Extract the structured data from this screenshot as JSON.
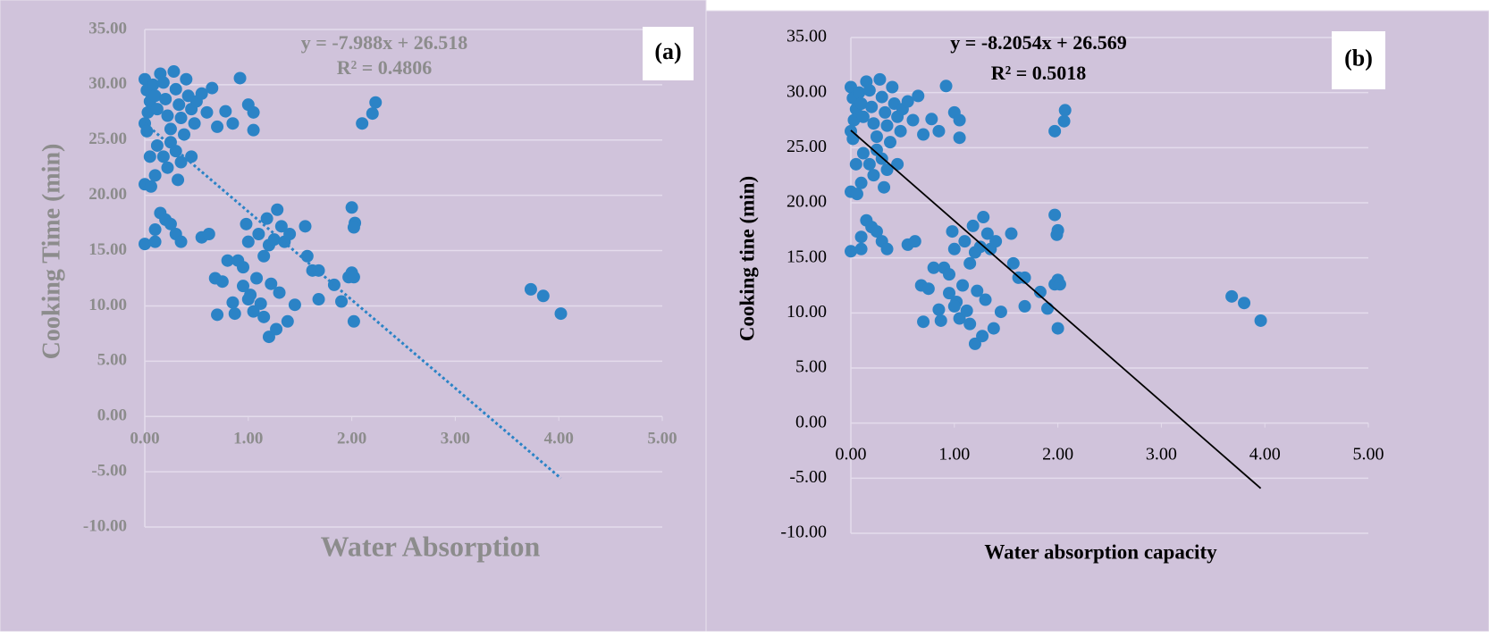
{
  "chart_data": [
    {
      "type": "scatter",
      "panel_label": "(a)",
      "equation": "y = -7.988x + 26.518",
      "r_squared": "R² = 0.4806",
      "x_label": "Water Absorption",
      "y_label": "Cooking Time (min)",
      "text_color": "#8c8c8c",
      "color": "#2b83c6",
      "trendline": {
        "slope": -7.988,
        "intercept": 26.518,
        "x_range": [
          0,
          4.02
        ],
        "style": "dotted"
      },
      "xlim": [
        0,
        5
      ],
      "ylim": [
        -10,
        35
      ],
      "grid": true,
      "xticks": [
        {
          "value": 0,
          "label": "0.00"
        },
        {
          "value": 1,
          "label": "1.00"
        },
        {
          "value": 2,
          "label": "2.00"
        },
        {
          "value": 3,
          "label": "3.00"
        },
        {
          "value": 4,
          "label": "4.00"
        },
        {
          "value": 5,
          "label": "5.00"
        }
      ],
      "yticks": [
        {
          "value": -10,
          "label": "-10.00"
        },
        {
          "value": -5,
          "label": "-5.00"
        },
        {
          "value": 0,
          "label": "0.00"
        },
        {
          "value": 5,
          "label": "5.00"
        },
        {
          "value": 10,
          "label": "10.00"
        },
        {
          "value": 15,
          "label": "15.00"
        },
        {
          "value": 20,
          "label": "20.00"
        },
        {
          "value": 25,
          "label": "25.00"
        },
        {
          "value": 30,
          "label": "30.00"
        },
        {
          "value": 35,
          "label": "35.00"
        }
      ],
      "x": [
        0,
        0.02,
        0.05,
        0.03,
        0,
        0.02,
        0.08,
        0.1,
        0.12,
        0.15,
        0.18,
        0.2,
        0.22,
        0.25,
        0.28,
        0.3,
        0.33,
        0.35,
        0.38,
        0.4,
        0.42,
        0.45,
        0.48,
        0.5,
        0.55,
        0.6,
        0.65,
        0.7,
        0.12,
        0.18,
        0.22,
        0.3,
        0.35,
        0.45,
        0.05,
        0,
        0.06,
        0.1,
        0.32,
        0.25,
        0,
        0.1,
        0.15,
        0.2,
        0.25,
        0.3,
        0.35,
        0.55,
        0.62,
        0.1,
        0.85,
        0.92,
        1.0,
        1.05,
        1.05,
        0.78,
        0.68,
        0.7,
        0.75,
        0.8,
        0.85,
        0.87,
        0.9,
        0.95,
        0.98,
        1.0,
        1.02,
        1.05,
        1.08,
        1.1,
        1.12,
        1.15,
        1.18,
        1.2,
        1.22,
        1.25,
        1.28,
        1.3,
        1.32,
        1.35,
        1.38,
        1.4,
        1.45,
        1.2,
        1.27,
        1.15,
        1.0,
        0.95,
        1.55,
        1.57,
        1.62,
        1.68,
        1.68,
        1.83,
        1.9,
        1.97,
        2.0,
        2.02,
        2.0,
        2.03,
        2.02,
        2.02,
        2.1,
        2.2,
        2.23,
        3.73,
        3.85,
        4.02
      ],
      "values": [
        30.5,
        29.5,
        28.5,
        27.5,
        26.5,
        25.8,
        30.0,
        29.0,
        27.8,
        31.0,
        30.2,
        28.7,
        27.2,
        26.0,
        31.2,
        29.6,
        28.2,
        27.0,
        25.5,
        30.5,
        29.0,
        27.8,
        26.5,
        28.5,
        29.2,
        27.5,
        29.7,
        26.2,
        24.5,
        23.5,
        22.5,
        24.0,
        23.0,
        23.5,
        23.5,
        21.0,
        20.8,
        21.8,
        21.4,
        24.8,
        15.6,
        15.8,
        18.4,
        17.8,
        17.4,
        16.5,
        15.8,
        16.2,
        16.5,
        16.9,
        26.5,
        30.6,
        28.2,
        27.5,
        25.9,
        27.6,
        12.5,
        9.2,
        12.2,
        14.1,
        10.3,
        9.3,
        14.1,
        13.5,
        17.4,
        15.8,
        11.0,
        9.5,
        12.5,
        16.5,
        10.2,
        14.5,
        17.9,
        15.5,
        12.0,
        16.0,
        18.7,
        11.2,
        17.2,
        15.8,
        8.6,
        16.5,
        10.1,
        7.2,
        7.9,
        9.0,
        10.6,
        11.8,
        17.2,
        14.5,
        13.2,
        13.2,
        10.6,
        11.9,
        10.4,
        12.6,
        13.0,
        12.6,
        18.9,
        17.5,
        17.1,
        8.6,
        26.5,
        27.4,
        28.4,
        11.5,
        10.9,
        9.3
      ]
    },
    {
      "type": "scatter",
      "panel_label": "(b)",
      "equation": "y = -8.2054x + 26.569",
      "r_squared": "R² = 0.5018",
      "x_label": "Water absorption capacity",
      "y_label": "Cooking tine (min)",
      "text_color": "#000000",
      "color": "#2b83c6",
      "trendline": {
        "slope": -8.2054,
        "intercept": 26.569,
        "x_range": [
          0,
          3.96
        ],
        "style": "solid"
      },
      "xlim": [
        0,
        5
      ],
      "ylim": [
        -10,
        35
      ],
      "grid": true,
      "xticks": [
        {
          "value": 0,
          "label": "0.00"
        },
        {
          "value": 1,
          "label": "1.00"
        },
        {
          "value": 2,
          "label": "2.00"
        },
        {
          "value": 3,
          "label": "3.00"
        },
        {
          "value": 4,
          "label": "4.00"
        },
        {
          "value": 5,
          "label": "5.00"
        }
      ],
      "yticks": [
        {
          "value": -10,
          "label": "-10.00"
        },
        {
          "value": -5,
          "label": "-5.00"
        },
        {
          "value": 0,
          "label": "0.00"
        },
        {
          "value": 5,
          "label": "5.00"
        },
        {
          "value": 10,
          "label": "10.00"
        },
        {
          "value": 15,
          "label": "15.00"
        },
        {
          "value": 20,
          "label": "20.00"
        },
        {
          "value": 25,
          "label": "25.00"
        },
        {
          "value": 30,
          "label": "30.00"
        },
        {
          "value": 35,
          "label": "35.00"
        }
      ],
      "x": [
        0,
        0.02,
        0.05,
        0.03,
        0,
        0.02,
        0.08,
        0.1,
        0.12,
        0.15,
        0.18,
        0.2,
        0.22,
        0.25,
        0.28,
        0.3,
        0.33,
        0.35,
        0.38,
        0.4,
        0.42,
        0.45,
        0.48,
        0.5,
        0.55,
        0.6,
        0.65,
        0.7,
        0.12,
        0.18,
        0.22,
        0.3,
        0.35,
        0.45,
        0.05,
        0,
        0.06,
        0.1,
        0.32,
        0.25,
        0,
        0.1,
        0.15,
        0.2,
        0.25,
        0.3,
        0.35,
        0.55,
        0.62,
        0.1,
        0.85,
        0.92,
        1.0,
        1.05,
        1.05,
        0.78,
        0.68,
        0.7,
        0.75,
        0.8,
        0.85,
        0.87,
        0.9,
        0.95,
        0.98,
        1.0,
        1.02,
        1.05,
        1.08,
        1.1,
        1.12,
        1.15,
        1.18,
        1.2,
        1.22,
        1.25,
        1.28,
        1.3,
        1.32,
        1.35,
        1.38,
        1.4,
        1.45,
        1.2,
        1.27,
        1.15,
        1.0,
        0.95,
        1.55,
        1.57,
        1.62,
        1.68,
        1.68,
        1.83,
        1.9,
        1.97,
        2.0,
        2.02,
        1.97,
        2.0,
        1.99,
        2.0,
        1.97,
        2.06,
        2.07,
        3.68,
        3.8,
        3.96
      ],
      "values": [
        30.5,
        29.5,
        28.5,
        27.5,
        26.5,
        25.8,
        30.0,
        29.0,
        27.8,
        31.0,
        30.2,
        28.7,
        27.2,
        26.0,
        31.2,
        29.6,
        28.2,
        27.0,
        25.5,
        30.5,
        29.0,
        27.8,
        26.5,
        28.5,
        29.2,
        27.5,
        29.7,
        26.2,
        24.5,
        23.5,
        22.5,
        24.0,
        23.0,
        23.5,
        23.5,
        21.0,
        20.8,
        21.8,
        21.4,
        24.8,
        15.6,
        15.8,
        18.4,
        17.8,
        17.4,
        16.5,
        15.8,
        16.2,
        16.5,
        16.9,
        26.5,
        30.6,
        28.2,
        27.5,
        25.9,
        27.6,
        12.5,
        9.2,
        12.2,
        14.1,
        10.3,
        9.3,
        14.1,
        13.5,
        17.4,
        15.8,
        11.0,
        9.5,
        12.5,
        16.5,
        10.2,
        14.5,
        17.9,
        15.5,
        12.0,
        16.0,
        18.7,
        11.2,
        17.2,
        15.8,
        8.6,
        16.5,
        10.1,
        7.2,
        7.9,
        9.0,
        10.6,
        11.8,
        17.2,
        14.5,
        13.2,
        13.2,
        10.6,
        11.9,
        10.4,
        12.6,
        13.0,
        12.6,
        18.9,
        17.5,
        17.1,
        8.6,
        26.5,
        27.4,
        28.4,
        11.5,
        10.9,
        9.3
      ]
    }
  ]
}
